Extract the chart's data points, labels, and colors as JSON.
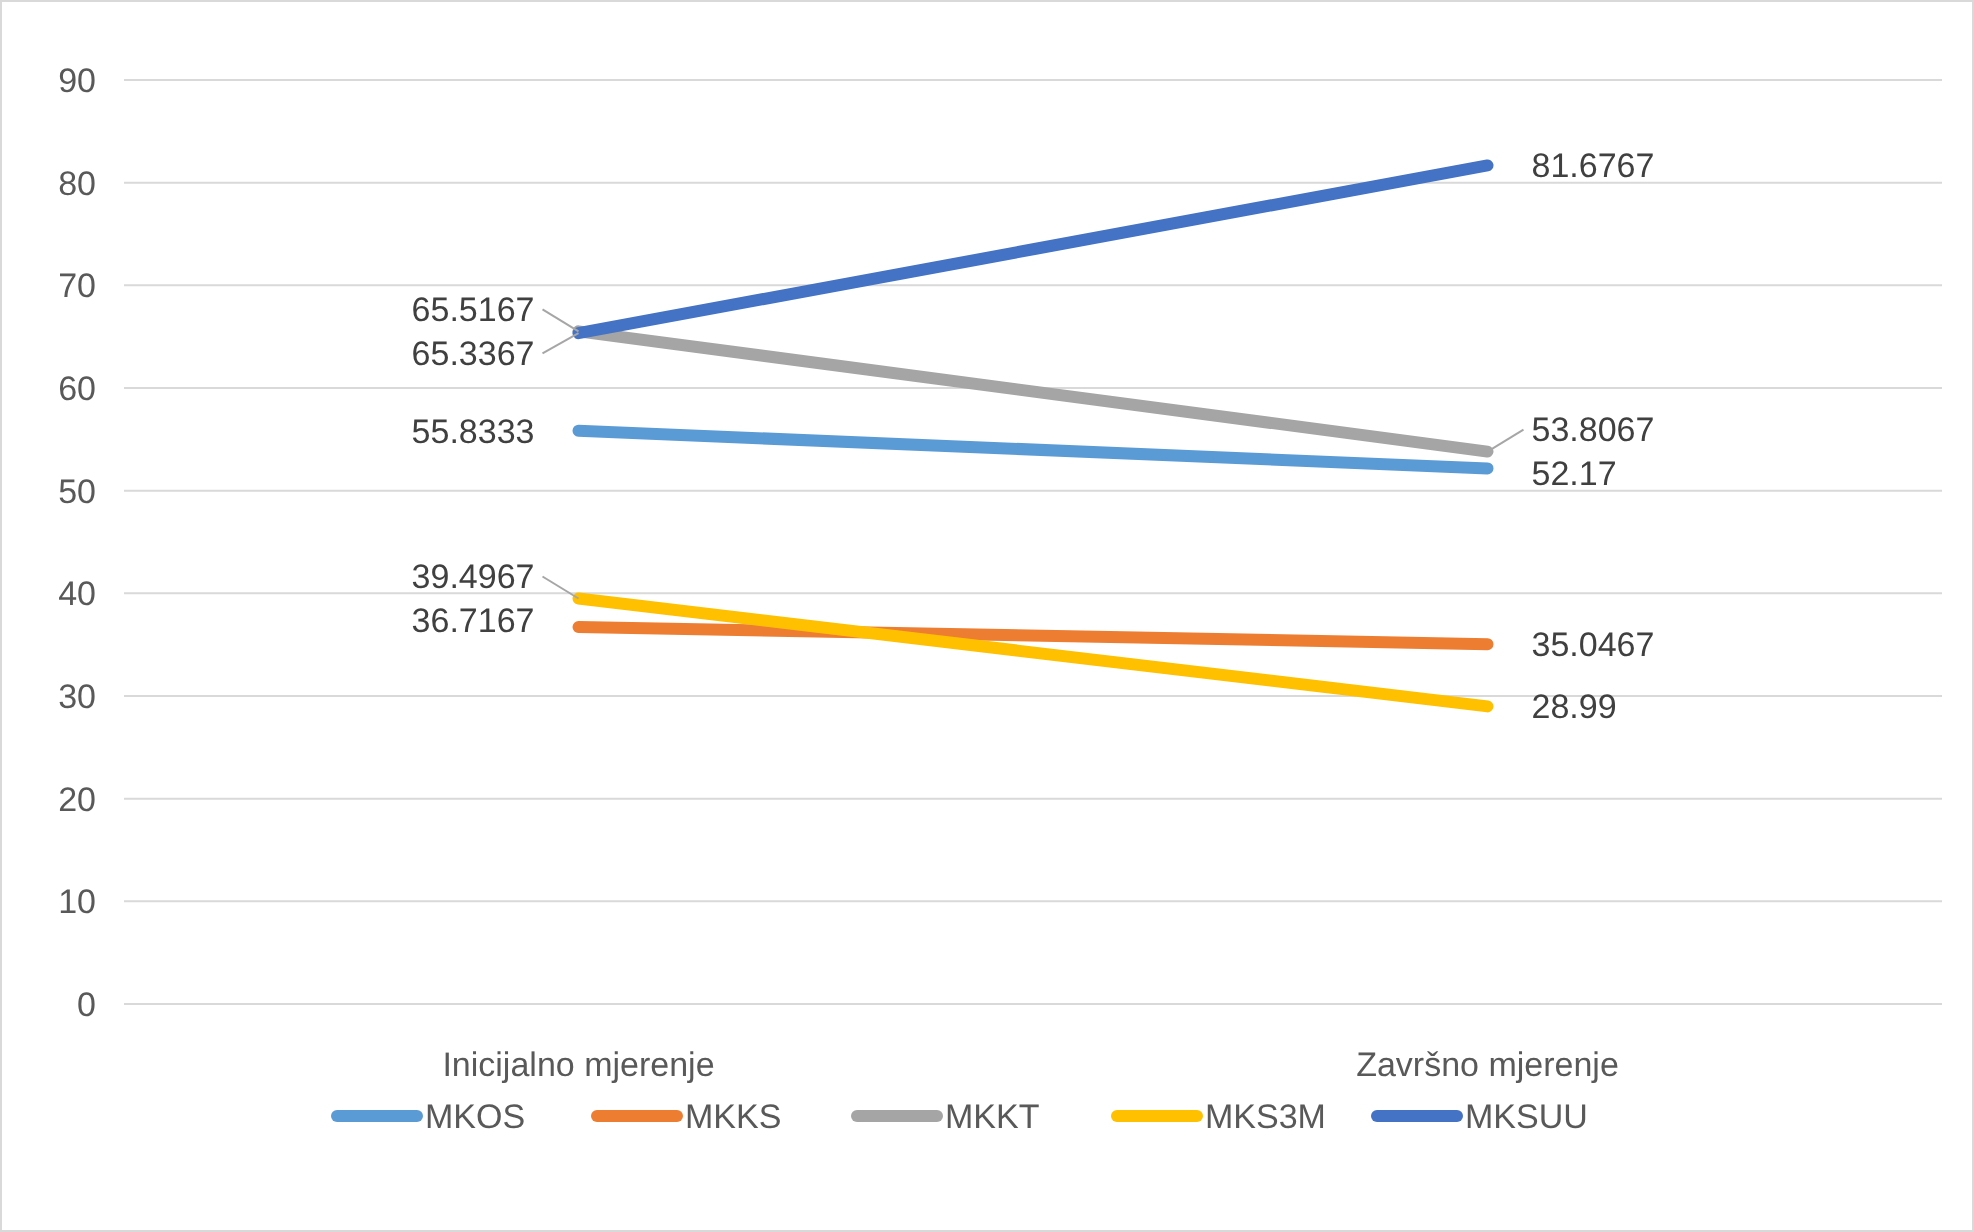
{
  "chart_data": {
    "type": "line",
    "categories": [
      "Inicijalno mjerenje",
      "Završno mjerenje"
    ],
    "series": [
      {
        "name": "MKOS",
        "color": "#5b9bd5",
        "values": [
          55.8333,
          52.17
        ]
      },
      {
        "name": "MKKS",
        "color": "#ed7d31",
        "values": [
          36.7167,
          35.0467
        ]
      },
      {
        "name": "MKKT",
        "color": "#a5a5a5",
        "values": [
          65.5167,
          53.8067
        ]
      },
      {
        "name": "MKS3M",
        "color": "#ffc000",
        "values": [
          39.4967,
          28.99
        ]
      },
      {
        "name": "MKSUU",
        "color": "#4472c4",
        "values": [
          65.3367,
          81.6767
        ]
      }
    ],
    "ylim": [
      0,
      90
    ],
    "yticks": [
      0,
      10,
      20,
      30,
      40,
      50,
      60,
      70,
      80,
      90
    ],
    "grid": "y",
    "legend": "bottom",
    "data_labels": true,
    "marker": "none"
  }
}
